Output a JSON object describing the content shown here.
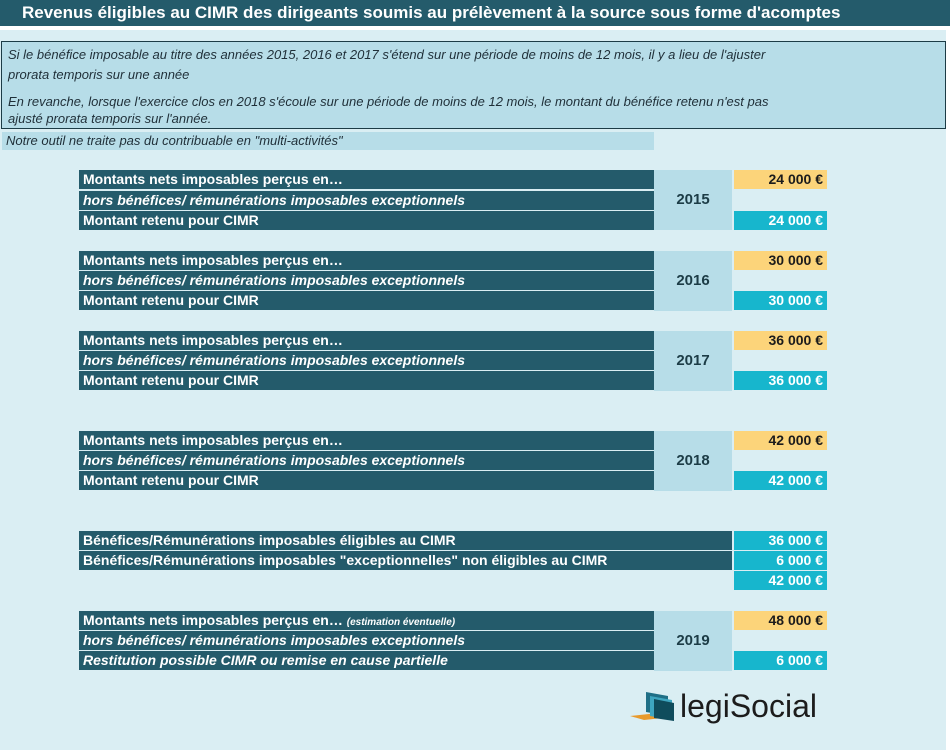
{
  "title": "Revenus éligibles au CIMR des dirigeants soumis au prélèvement à la source sous forme d'acomptes",
  "notes": [
    "Si le bénéfice imposable au titre des années 2015, 2016 et 2017 s'étend sur une période de moins de 12 mois, il y a lieu de l'ajuster",
    "prorata temporis sur une année",
    "En revanche, lorsque l'exercice clos en 2018 s'écoule sur une période de moins de 12 mois, le montant du bénéfice retenu n'est pas",
    "ajusté prorata temporis sur l'année.",
    "Notre outil ne traite pas du contribuable en \"multi-activités\""
  ],
  "blocks": [
    {
      "year": "2015",
      "row1": "Montants nets imposables perçus en…",
      "row2": "hors bénéfices/ rémunérations imposables exceptionnels",
      "row3": "Montant retenu pour CIMR",
      "amount": "24 000 €",
      "retained": "24 000 €"
    },
    {
      "year": "2016",
      "row1": "Montants nets imposables perçus en…",
      "row2": "hors bénéfices/ rémunérations imposables exceptionnels",
      "row3": "Montant retenu pour CIMR",
      "amount": "30 000 €",
      "retained": "30 000 €"
    },
    {
      "year": "2017",
      "row1": "Montants nets imposables perçus en…",
      "row2": "hors bénéfices/ rémunérations imposables exceptionnels",
      "row3": "Montant retenu pour CIMR",
      "amount": "36 000 €",
      "retained": "36 000 €"
    },
    {
      "year": "2018",
      "row1": "Montants nets imposables perçus en…",
      "row2": "hors bénéfices/ rémunérations imposables exceptionnels",
      "row3": "Montant retenu pour CIMR",
      "amount": "42 000 €",
      "retained": "42 000 €"
    }
  ],
  "summary": {
    "eligible_label": "Bénéfices/Rémunérations imposables éligibles au CIMR",
    "eligible_value": "36 000 €",
    "exceptional_label": "Bénéfices/Rémunérations imposables \"exceptionnelles\" non éligibles au CIMR",
    "exceptional_value": "6 000 €",
    "total_value": "42 000 €"
  },
  "block2019": {
    "year": "2019",
    "row1": "Montants nets imposables perçus en…",
    "row1_note": "(estimation éventuelle)",
    "row2": "hors bénéfices/ rémunérations imposables exceptionnels",
    "row3": "Restitution possible CIMR ou remise en cause partielle",
    "amount": "48 000 €",
    "restitution": "6 000 €"
  },
  "logo": {
    "part1": "legi",
    "part2": "Social",
    "icon": "legisocial-logo-icon"
  },
  "colors": {
    "header": "#245b6b",
    "input": "#fcd47a",
    "computed": "#17b6cd",
    "panel": "#b7dde8",
    "background": "#daeef3"
  }
}
